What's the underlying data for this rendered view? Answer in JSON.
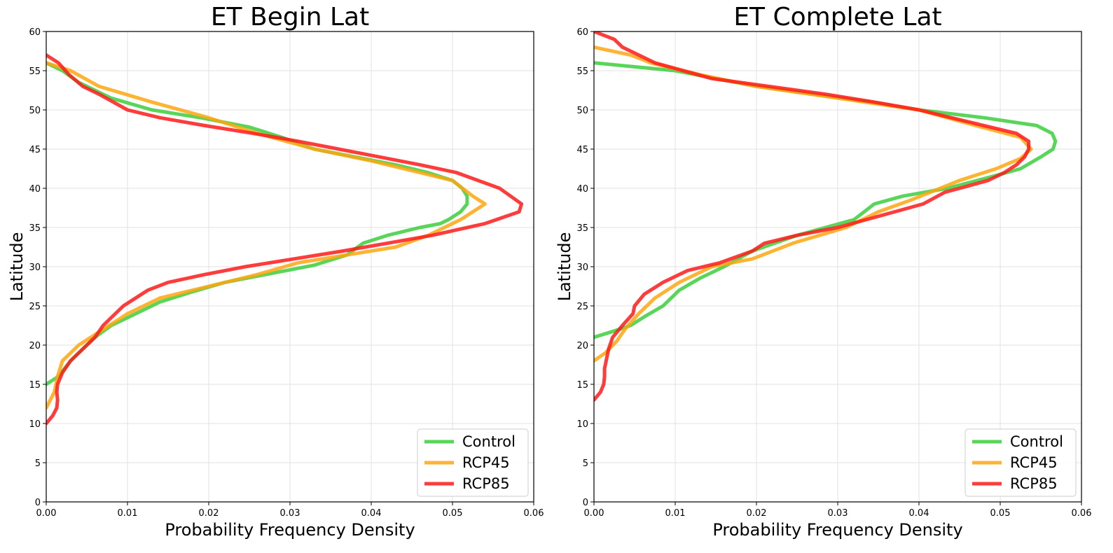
{
  "chart_data": [
    {
      "type": "line",
      "title": "ET Begin Lat",
      "xlabel": "Probability Frequency Density",
      "ylabel": "Latitude",
      "xlim": [
        0,
        0.06
      ],
      "ylim": [
        0,
        60
      ],
      "xticks": [
        "0.00",
        "0.01",
        "0.02",
        "0.03",
        "0.04",
        "0.05",
        "0.06"
      ],
      "yticks": [
        "0",
        "5",
        "10",
        "15",
        "20",
        "25",
        "30",
        "35",
        "40",
        "45",
        "50",
        "55",
        "60"
      ],
      "grid": true,
      "legend_position": "lower-right",
      "series": [
        {
          "name": "Control",
          "color": "#3ccf3c",
          "points": [
            [
              0.0,
              15
            ],
            [
              0.0015,
              16
            ],
            [
              0.003,
              18
            ],
            [
              0.0045,
              19.5
            ],
            [
              0.006,
              21
            ],
            [
              0.008,
              22.5
            ],
            [
              0.011,
              24
            ],
            [
              0.014,
              25.5
            ],
            [
              0.018,
              26.8
            ],
            [
              0.022,
              28
            ],
            [
              0.027,
              29
            ],
            [
              0.033,
              30.2
            ],
            [
              0.037,
              31.5
            ],
            [
              0.039,
              33
            ],
            [
              0.042,
              34
            ],
            [
              0.046,
              35
            ],
            [
              0.0485,
              35.5
            ],
            [
              0.0495,
              36
            ],
            [
              0.051,
              37
            ],
            [
              0.0518,
              38
            ],
            [
              0.0518,
              39
            ],
            [
              0.0512,
              40
            ],
            [
              0.05,
              41
            ],
            [
              0.047,
              42
            ],
            [
              0.043,
              43
            ],
            [
              0.038,
              44
            ],
            [
              0.033,
              45
            ],
            [
              0.029,
              46.5
            ],
            [
              0.025,
              47.8
            ],
            [
              0.019,
              49
            ],
            [
              0.013,
              50
            ],
            [
              0.008,
              51.5
            ],
            [
              0.004,
              53.5
            ],
            [
              0.002,
              55
            ],
            [
              0.0,
              56
            ]
          ]
        },
        {
          "name": "RCP45",
          "color": "#ffa60f",
          "points": [
            [
              0.0,
              12
            ],
            [
              0.001,
              14
            ],
            [
              0.0014,
              16
            ],
            [
              0.002,
              18
            ],
            [
              0.004,
              20
            ],
            [
              0.007,
              22
            ],
            [
              0.01,
              24
            ],
            [
              0.014,
              26
            ],
            [
              0.02,
              27.5
            ],
            [
              0.026,
              29
            ],
            [
              0.031,
              30.5
            ],
            [
              0.037,
              31.5
            ],
            [
              0.043,
              32.5
            ],
            [
              0.047,
              34
            ],
            [
              0.049,
              35
            ],
            [
              0.051,
              36
            ],
            [
              0.0525,
              37
            ],
            [
              0.054,
              38
            ],
            [
              0.0525,
              39
            ],
            [
              0.05,
              41
            ],
            [
              0.046,
              42
            ],
            [
              0.04,
              43.5
            ],
            [
              0.033,
              45
            ],
            [
              0.026,
              47
            ],
            [
              0.02,
              49
            ],
            [
              0.013,
              51
            ],
            [
              0.0065,
              53
            ],
            [
              0.003,
              55
            ],
            [
              0.0,
              56
            ]
          ]
        },
        {
          "name": "RCP85",
          "color": "#ff1a1a",
          "points": [
            [
              0.0,
              10
            ],
            [
              0.0008,
              11
            ],
            [
              0.0013,
              12
            ],
            [
              0.0014,
              13
            ],
            [
              0.0013,
              14
            ],
            [
              0.0014,
              15
            ],
            [
              0.002,
              16.5
            ],
            [
              0.003,
              18
            ],
            [
              0.0045,
              19.5
            ],
            [
              0.006,
              21
            ],
            [
              0.007,
              22.5
            ],
            [
              0.0095,
              25
            ],
            [
              0.0125,
              27
            ],
            [
              0.015,
              28
            ],
            [
              0.0195,
              29
            ],
            [
              0.0245,
              30
            ],
            [
              0.0305,
              31
            ],
            [
              0.0365,
              32
            ],
            [
              0.042,
              33
            ],
            [
              0.0475,
              34
            ],
            [
              0.054,
              35.5
            ],
            [
              0.0582,
              37
            ],
            [
              0.0585,
              38
            ],
            [
              0.0558,
              40
            ],
            [
              0.0505,
              42
            ],
            [
              0.046,
              43
            ],
            [
              0.041,
              44
            ],
            [
              0.036,
              45
            ],
            [
              0.031,
              46
            ],
            [
              0.0255,
              47
            ],
            [
              0.0195,
              48
            ],
            [
              0.014,
              49
            ],
            [
              0.01,
              50
            ],
            [
              0.0065,
              52
            ],
            [
              0.0045,
              53
            ],
            [
              0.0028,
              54.5
            ],
            [
              0.0015,
              56
            ],
            [
              0.0,
              57
            ]
          ]
        }
      ]
    },
    {
      "type": "line",
      "title": "ET Complete Lat",
      "xlabel": "Probability Frequency Density",
      "ylabel": "Latitude",
      "xlim": [
        0,
        0.06
      ],
      "ylim": [
        0,
        60
      ],
      "xticks": [
        "0.00",
        "0.01",
        "0.02",
        "0.03",
        "0.04",
        "0.05",
        "0.06"
      ],
      "yticks": [
        "0",
        "5",
        "10",
        "15",
        "20",
        "25",
        "30",
        "35",
        "40",
        "45",
        "50",
        "55",
        "60"
      ],
      "grid": true,
      "legend_position": "lower-right",
      "series": [
        {
          "name": "Control",
          "color": "#3ccf3c",
          "points": [
            [
              0.0,
              21
            ],
            [
              0.0025,
              21.8
            ],
            [
              0.0045,
              22.5
            ],
            [
              0.0065,
              23.8
            ],
            [
              0.0085,
              25
            ],
            [
              0.0105,
              27
            ],
            [
              0.013,
              28.5
            ],
            [
              0.016,
              30
            ],
            [
              0.0195,
              32
            ],
            [
              0.025,
              34
            ],
            [
              0.032,
              36
            ],
            [
              0.0345,
              38
            ],
            [
              0.038,
              39
            ],
            [
              0.0435,
              40
            ],
            [
              0.049,
              41.5
            ],
            [
              0.0525,
              42.5
            ],
            [
              0.055,
              44
            ],
            [
              0.0565,
              45
            ],
            [
              0.0568,
              46
            ],
            [
              0.0564,
              47
            ],
            [
              0.0545,
              48
            ],
            [
              0.048,
              49
            ],
            [
              0.04,
              50
            ],
            [
              0.034,
              51
            ],
            [
              0.027,
              52
            ],
            [
              0.02,
              53
            ],
            [
              0.01,
              55
            ],
            [
              0.0,
              56
            ]
          ]
        },
        {
          "name": "RCP45",
          "color": "#ffa60f",
          "points": [
            [
              0.0,
              18
            ],
            [
              0.0014,
              19
            ],
            [
              0.0028,
              20.5
            ],
            [
              0.0038,
              22
            ],
            [
              0.0055,
              24
            ],
            [
              0.0075,
              26
            ],
            [
              0.0105,
              28
            ],
            [
              0.0145,
              30
            ],
            [
              0.0195,
              31
            ],
            [
              0.0245,
              33
            ],
            [
              0.031,
              35
            ],
            [
              0.035,
              37
            ],
            [
              0.039,
              38.5
            ],
            [
              0.045,
              41
            ],
            [
              0.0495,
              42.5
            ],
            [
              0.0525,
              43.8
            ],
            [
              0.0538,
              45
            ],
            [
              0.0525,
              46.5
            ],
            [
              0.047,
              48
            ],
            [
              0.04,
              50
            ],
            [
              0.03,
              51.5
            ],
            [
              0.02,
              53
            ],
            [
              0.013,
              54.5
            ],
            [
              0.007,
              56
            ],
            [
              0.0045,
              57
            ],
            [
              0.0,
              58
            ]
          ]
        },
        {
          "name": "RCP85",
          "color": "#ff1a1a",
          "points": [
            [
              0.0,
              13
            ],
            [
              0.0008,
              14
            ],
            [
              0.0012,
              15
            ],
            [
              0.0013,
              16
            ],
            [
              0.0013,
              17
            ],
            [
              0.0018,
              19.5
            ],
            [
              0.0023,
              21
            ],
            [
              0.0035,
              22.5
            ],
            [
              0.0048,
              24
            ],
            [
              0.005,
              25
            ],
            [
              0.0062,
              26.5
            ],
            [
              0.0085,
              28
            ],
            [
              0.0115,
              29.5
            ],
            [
              0.0155,
              30.5
            ],
            [
              0.0195,
              32
            ],
            [
              0.021,
              33
            ],
            [
              0.025,
              34
            ],
            [
              0.03,
              35
            ],
            [
              0.037,
              37
            ],
            [
              0.0405,
              38
            ],
            [
              0.0432,
              39.5
            ],
            [
              0.045,
              40
            ],
            [
              0.0485,
              41
            ],
            [
              0.0505,
              42
            ],
            [
              0.052,
              43
            ],
            [
              0.053,
              44
            ],
            [
              0.0535,
              45
            ],
            [
              0.0535,
              46
            ],
            [
              0.052,
              47
            ],
            [
              0.046,
              48.5
            ],
            [
              0.04,
              50
            ],
            [
              0.0345,
              51
            ],
            [
              0.0285,
              52
            ],
            [
              0.0215,
              53
            ],
            [
              0.0145,
              54
            ],
            [
              0.0075,
              56
            ],
            [
              0.0035,
              58
            ],
            [
              0.0025,
              59
            ],
            [
              0.0,
              60
            ]
          ]
        }
      ]
    }
  ]
}
